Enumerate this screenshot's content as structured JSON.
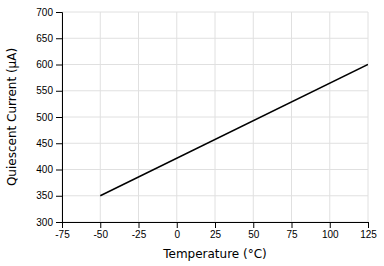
{
  "chart_data": {
    "type": "line",
    "x": [
      -50,
      125
    ],
    "values": [
      350,
      600
    ],
    "color": "#000000",
    "xlabel": "Temperature (°C)",
    "ylabel": "Quiescent Current (μA)",
    "xlim": [
      -75,
      125
    ],
    "ylim": [
      300,
      700
    ],
    "xticks": [
      -75,
      -50,
      -25,
      0,
      25,
      50,
      75,
      100,
      125
    ],
    "yticks": [
      300,
      350,
      400,
      450,
      500,
      550,
      600,
      650,
      700
    ],
    "grid": true
  }
}
